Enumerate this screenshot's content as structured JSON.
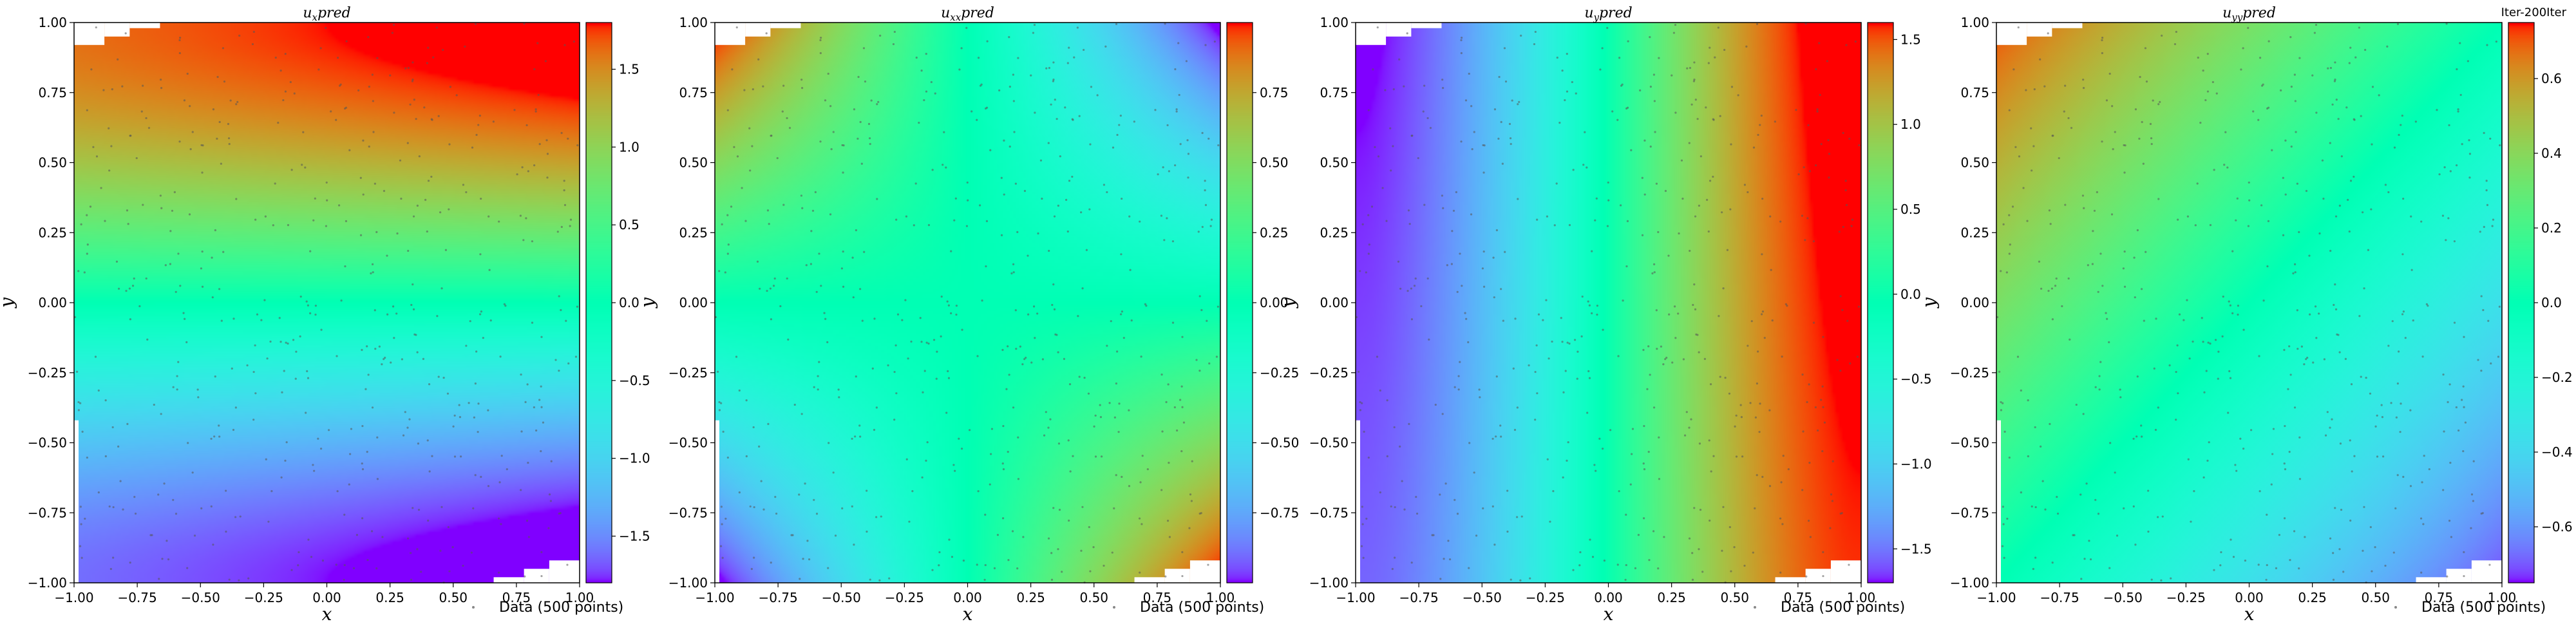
{
  "chart_data": [
    {
      "type": "heatmap",
      "title": "u_x pred",
      "title_main": "u",
      "title_sub": "x",
      "title_suffix": "pred",
      "xlabel": "x",
      "ylabel": "y",
      "xlim": [
        -1,
        1
      ],
      "ylim": [
        -1,
        1
      ],
      "colormap": "rainbow",
      "field": "sin(pi*y/2)*(1+0.1*x)",
      "colorbar_ticks": [
        "1.5",
        "1.0",
        "0.5",
        "0.0",
        "−0.5",
        "−1.0",
        "−1.5"
      ],
      "colorbar_tick_values": [
        1.5,
        1.0,
        0.5,
        0.0,
        -0.5,
        -1.0,
        -1.5
      ],
      "colorbar_range": [
        -1.8,
        1.8
      ],
      "legend": "Data (500 points)"
    },
    {
      "type": "heatmap",
      "title": "u_xx pred",
      "title_main": "u",
      "title_sub": "xx",
      "title_suffix": "pred",
      "xlabel": "x",
      "ylabel": "y",
      "xlim": [
        -1,
        1
      ],
      "ylim": [
        -1,
        1
      ],
      "colormap": "rainbow",
      "field": "-x*y",
      "colorbar_ticks": [
        "0.75",
        "0.50",
        "0.25",
        "0.00",
        "−0.25",
        "−0.50",
        "−0.75"
      ],
      "colorbar_tick_values": [
        0.75,
        0.5,
        0.25,
        0.0,
        -0.25,
        -0.5,
        -0.75
      ],
      "colorbar_range": [
        -1.0,
        1.0
      ],
      "legend": "Data (500 points)"
    },
    {
      "type": "heatmap",
      "title": "u_y pred",
      "title_main": "u",
      "title_sub": "y",
      "title_suffix": "pred",
      "xlabel": "x",
      "ylabel": "y",
      "xlim": [
        -1,
        1
      ],
      "ylim": [
        -1,
        1
      ],
      "colormap": "rainbow",
      "field": "sin(pi*x/2)*(1+0.05*y)",
      "colorbar_ticks": [
        "1.5",
        "1.0",
        "0.5",
        "0.0",
        "−0.5",
        "−1.0",
        "−1.5"
      ],
      "colorbar_tick_values": [
        1.5,
        1.0,
        0.5,
        0.0,
        -0.5,
        -1.0,
        -1.5
      ],
      "colorbar_range": [
        -1.7,
        1.6
      ],
      "legend": "Data (500 points)"
    },
    {
      "type": "heatmap",
      "title": "u_yy pred",
      "title_main": "u",
      "title_sub": "yy",
      "title_suffix": "pred",
      "xlabel": "x",
      "ylabel": "y",
      "xlim": [
        -1,
        1
      ],
      "ylim": [
        -1,
        1
      ],
      "colormap": "rainbow",
      "field": "-0.35*x+0.35*y",
      "colorbar_ticks": [
        "0.6",
        "0.4",
        "0.2",
        "0.0",
        "−0.2",
        "−0.4",
        "−0.6"
      ],
      "colorbar_tick_values": [
        0.6,
        0.4,
        0.2,
        0.0,
        -0.2,
        -0.4,
        -0.6
      ],
      "colorbar_range": [
        -0.75,
        0.75
      ],
      "legend": "Data (500 points)",
      "corner_label": "Iter-200Iter"
    }
  ],
  "shared": {
    "x_ticks": [
      "−1.00",
      "−0.75",
      "−0.50",
      "−0.25",
      "0.00",
      "0.25",
      "0.50",
      "0.75",
      "1.00"
    ],
    "x_tick_values": [
      -1.0,
      -0.75,
      -0.5,
      -0.25,
      0.0,
      0.25,
      0.5,
      0.75,
      1.0
    ],
    "y_ticks": [
      "1.00",
      "0.75",
      "0.50",
      "0.25",
      "0.00",
      "−0.25",
      "−0.50",
      "−0.75",
      "−1.00"
    ],
    "y_tick_values": [
      1.0,
      0.75,
      0.5,
      0.25,
      0.0,
      -0.25,
      -0.5,
      -0.75,
      -1.0
    ],
    "data_point_count": 500,
    "point_color": "#555555",
    "rainbow_stops": [
      "#8000ff",
      "#00b5eb",
      "#80ffb4",
      "#ffb360",
      "#ff0000"
    ]
  }
}
